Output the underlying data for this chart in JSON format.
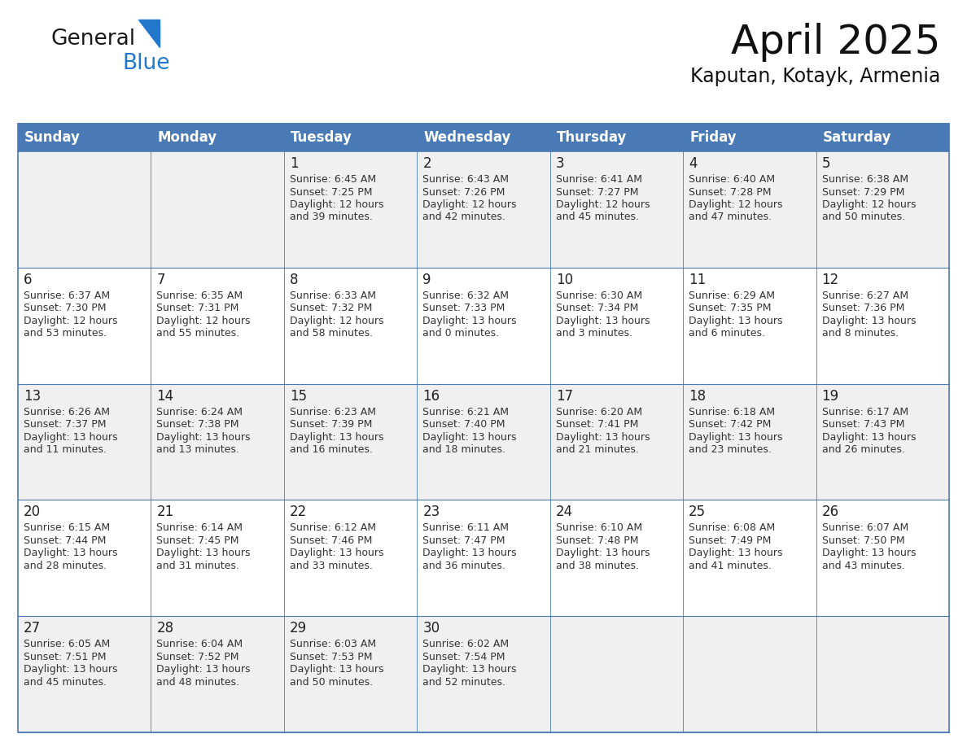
{
  "title": "April 2025",
  "subtitle": "Kaputan, Kotayk, Armenia",
  "days_of_week": [
    "Sunday",
    "Monday",
    "Tuesday",
    "Wednesday",
    "Thursday",
    "Friday",
    "Saturday"
  ],
  "header_bg": "#4a7ab5",
  "header_text": "#FFFFFF",
  "cell_bg_odd": "#F0F0F0",
  "cell_bg_even": "#FFFFFF",
  "cell_text": "#333333",
  "border_color": "#4a7ab5",
  "calendar": [
    [
      {
        "day": "",
        "sunrise": "",
        "sunset": "",
        "daylight_h": "",
        "daylight_m": ""
      },
      {
        "day": "",
        "sunrise": "",
        "sunset": "",
        "daylight_h": "",
        "daylight_m": ""
      },
      {
        "day": "1",
        "sunrise": "6:45 AM",
        "sunset": "7:25 PM",
        "daylight_h": "12 hours",
        "daylight_m": "and 39 minutes."
      },
      {
        "day": "2",
        "sunrise": "6:43 AM",
        "sunset": "7:26 PM",
        "daylight_h": "12 hours",
        "daylight_m": "and 42 minutes."
      },
      {
        "day": "3",
        "sunrise": "6:41 AM",
        "sunset": "7:27 PM",
        "daylight_h": "12 hours",
        "daylight_m": "and 45 minutes."
      },
      {
        "day": "4",
        "sunrise": "6:40 AM",
        "sunset": "7:28 PM",
        "daylight_h": "12 hours",
        "daylight_m": "and 47 minutes."
      },
      {
        "day": "5",
        "sunrise": "6:38 AM",
        "sunset": "7:29 PM",
        "daylight_h": "12 hours",
        "daylight_m": "and 50 minutes."
      }
    ],
    [
      {
        "day": "6",
        "sunrise": "6:37 AM",
        "sunset": "7:30 PM",
        "daylight_h": "12 hours",
        "daylight_m": "and 53 minutes."
      },
      {
        "day": "7",
        "sunrise": "6:35 AM",
        "sunset": "7:31 PM",
        "daylight_h": "12 hours",
        "daylight_m": "and 55 minutes."
      },
      {
        "day": "8",
        "sunrise": "6:33 AM",
        "sunset": "7:32 PM",
        "daylight_h": "12 hours",
        "daylight_m": "and 58 minutes."
      },
      {
        "day": "9",
        "sunrise": "6:32 AM",
        "sunset": "7:33 PM",
        "daylight_h": "13 hours",
        "daylight_m": "and 0 minutes."
      },
      {
        "day": "10",
        "sunrise": "6:30 AM",
        "sunset": "7:34 PM",
        "daylight_h": "13 hours",
        "daylight_m": "and 3 minutes."
      },
      {
        "day": "11",
        "sunrise": "6:29 AM",
        "sunset": "7:35 PM",
        "daylight_h": "13 hours",
        "daylight_m": "and 6 minutes."
      },
      {
        "day": "12",
        "sunrise": "6:27 AM",
        "sunset": "7:36 PM",
        "daylight_h": "13 hours",
        "daylight_m": "and 8 minutes."
      }
    ],
    [
      {
        "day": "13",
        "sunrise": "6:26 AM",
        "sunset": "7:37 PM",
        "daylight_h": "13 hours",
        "daylight_m": "and 11 minutes."
      },
      {
        "day": "14",
        "sunrise": "6:24 AM",
        "sunset": "7:38 PM",
        "daylight_h": "13 hours",
        "daylight_m": "and 13 minutes."
      },
      {
        "day": "15",
        "sunrise": "6:23 AM",
        "sunset": "7:39 PM",
        "daylight_h": "13 hours",
        "daylight_m": "and 16 minutes."
      },
      {
        "day": "16",
        "sunrise": "6:21 AM",
        "sunset": "7:40 PM",
        "daylight_h": "13 hours",
        "daylight_m": "and 18 minutes."
      },
      {
        "day": "17",
        "sunrise": "6:20 AM",
        "sunset": "7:41 PM",
        "daylight_h": "13 hours",
        "daylight_m": "and 21 minutes."
      },
      {
        "day": "18",
        "sunrise": "6:18 AM",
        "sunset": "7:42 PM",
        "daylight_h": "13 hours",
        "daylight_m": "and 23 minutes."
      },
      {
        "day": "19",
        "sunrise": "6:17 AM",
        "sunset": "7:43 PM",
        "daylight_h": "13 hours",
        "daylight_m": "and 26 minutes."
      }
    ],
    [
      {
        "day": "20",
        "sunrise": "6:15 AM",
        "sunset": "7:44 PM",
        "daylight_h": "13 hours",
        "daylight_m": "and 28 minutes."
      },
      {
        "day": "21",
        "sunrise": "6:14 AM",
        "sunset": "7:45 PM",
        "daylight_h": "13 hours",
        "daylight_m": "and 31 minutes."
      },
      {
        "day": "22",
        "sunrise": "6:12 AM",
        "sunset": "7:46 PM",
        "daylight_h": "13 hours",
        "daylight_m": "and 33 minutes."
      },
      {
        "day": "23",
        "sunrise": "6:11 AM",
        "sunset": "7:47 PM",
        "daylight_h": "13 hours",
        "daylight_m": "and 36 minutes."
      },
      {
        "day": "24",
        "sunrise": "6:10 AM",
        "sunset": "7:48 PM",
        "daylight_h": "13 hours",
        "daylight_m": "and 38 minutes."
      },
      {
        "day": "25",
        "sunrise": "6:08 AM",
        "sunset": "7:49 PM",
        "daylight_h": "13 hours",
        "daylight_m": "and 41 minutes."
      },
      {
        "day": "26",
        "sunrise": "6:07 AM",
        "sunset": "7:50 PM",
        "daylight_h": "13 hours",
        "daylight_m": "and 43 minutes."
      }
    ],
    [
      {
        "day": "27",
        "sunrise": "6:05 AM",
        "sunset": "7:51 PM",
        "daylight_h": "13 hours",
        "daylight_m": "and 45 minutes."
      },
      {
        "day": "28",
        "sunrise": "6:04 AM",
        "sunset": "7:52 PM",
        "daylight_h": "13 hours",
        "daylight_m": "and 48 minutes."
      },
      {
        "day": "29",
        "sunrise": "6:03 AM",
        "sunset": "7:53 PM",
        "daylight_h": "13 hours",
        "daylight_m": "and 50 minutes."
      },
      {
        "day": "30",
        "sunrise": "6:02 AM",
        "sunset": "7:54 PM",
        "daylight_h": "13 hours",
        "daylight_m": "and 52 minutes."
      },
      {
        "day": "",
        "sunrise": "",
        "sunset": "",
        "daylight_h": "",
        "daylight_m": ""
      },
      {
        "day": "",
        "sunrise": "",
        "sunset": "",
        "daylight_h": "",
        "daylight_m": ""
      },
      {
        "day": "",
        "sunrise": "",
        "sunset": "",
        "daylight_h": "",
        "daylight_m": ""
      }
    ]
  ],
  "logo_general_color": "#1a1a1a",
  "logo_blue_color": "#2277CC",
  "logo_triangle_color": "#2277CC",
  "title_fontsize": 36,
  "subtitle_fontsize": 17,
  "header_fontsize": 12,
  "day_num_fontsize": 12,
  "cell_text_fontsize": 9
}
